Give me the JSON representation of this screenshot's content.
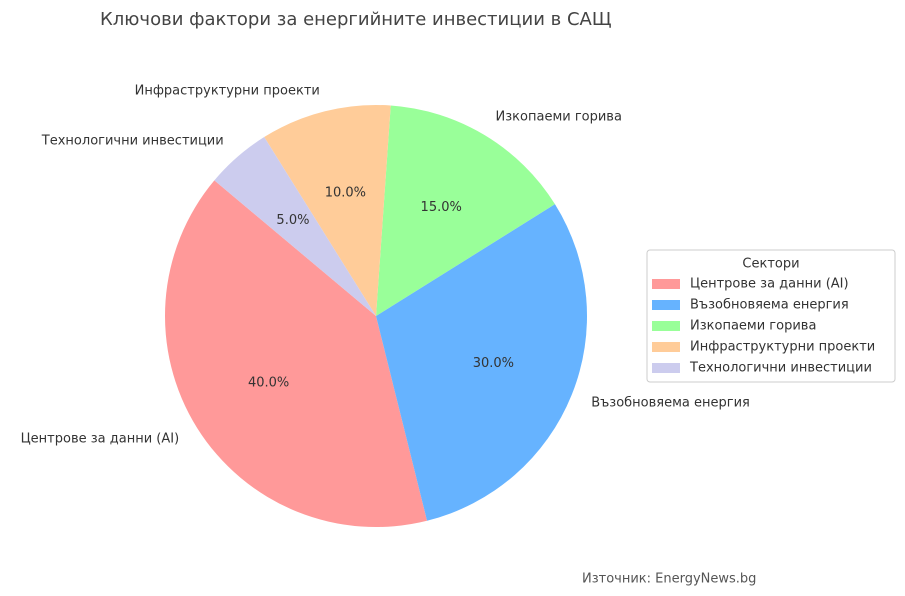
{
  "chart_data": {
    "type": "pie",
    "title": "Ключови фактори за енергийните инвестиции в САЩ",
    "categories": [
      "Центрове за данни (AI)",
      "Възобновяема енергия",
      "Изкопаеми горива",
      "Инфраструктурни проекти",
      "Технологични инвестиции"
    ],
    "values": [
      40,
      30,
      15,
      10,
      5
    ],
    "value_labels": [
      "40.0%",
      "30.0%",
      "15.0%",
      "10.0%",
      "5.0%"
    ],
    "colors": [
      "#ff9999",
      "#66b3ff",
      "#99ff99",
      "#ffcc99",
      "#ccccee"
    ],
    "start_angle": 140,
    "legend_title": "Сектори",
    "legend_position": "right",
    "source": "Източник: EnergyNews.bg"
  }
}
